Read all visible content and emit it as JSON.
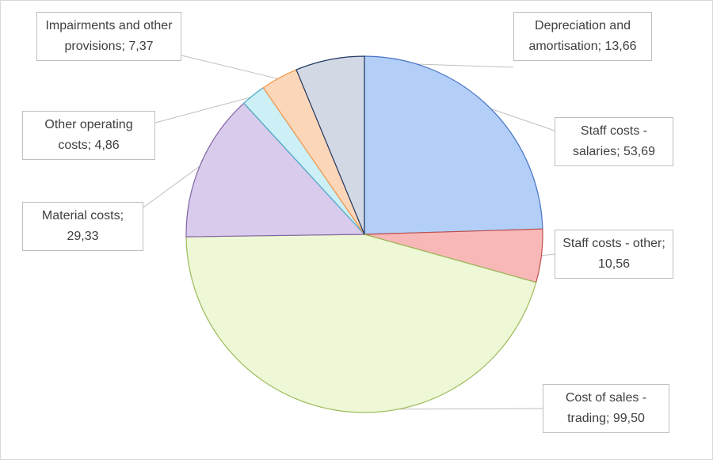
{
  "chart_data": {
    "type": "pie",
    "categories": [
      "Staff costs - salaries",
      "Staff costs - other",
      "Cost of sales - trading",
      "Material costs",
      "Other operating costs",
      "Impairments and other provisions",
      "Depreciation and amortisation"
    ],
    "values": [
      53.69,
      10.56,
      99.5,
      29.33,
      4.86,
      7.37,
      13.66
    ],
    "value_labels": [
      "53,69",
      "10,56",
      "99,50",
      "29,33",
      "4,86",
      "7,37",
      "13,66"
    ],
    "label_separator": "; ",
    "colors": [
      "#b3cff7",
      "#f9b8b8",
      "#eef7d6",
      "#d9cbec",
      "#cdeff6",
      "#fcd6b8",
      "#d3d9e4"
    ],
    "stroke_colors": [
      "#4472c4",
      "#c0504d",
      "#9bbb59",
      "#8064a2",
      "#4bacc6",
      "#f79646",
      "#1f3864"
    ]
  }
}
